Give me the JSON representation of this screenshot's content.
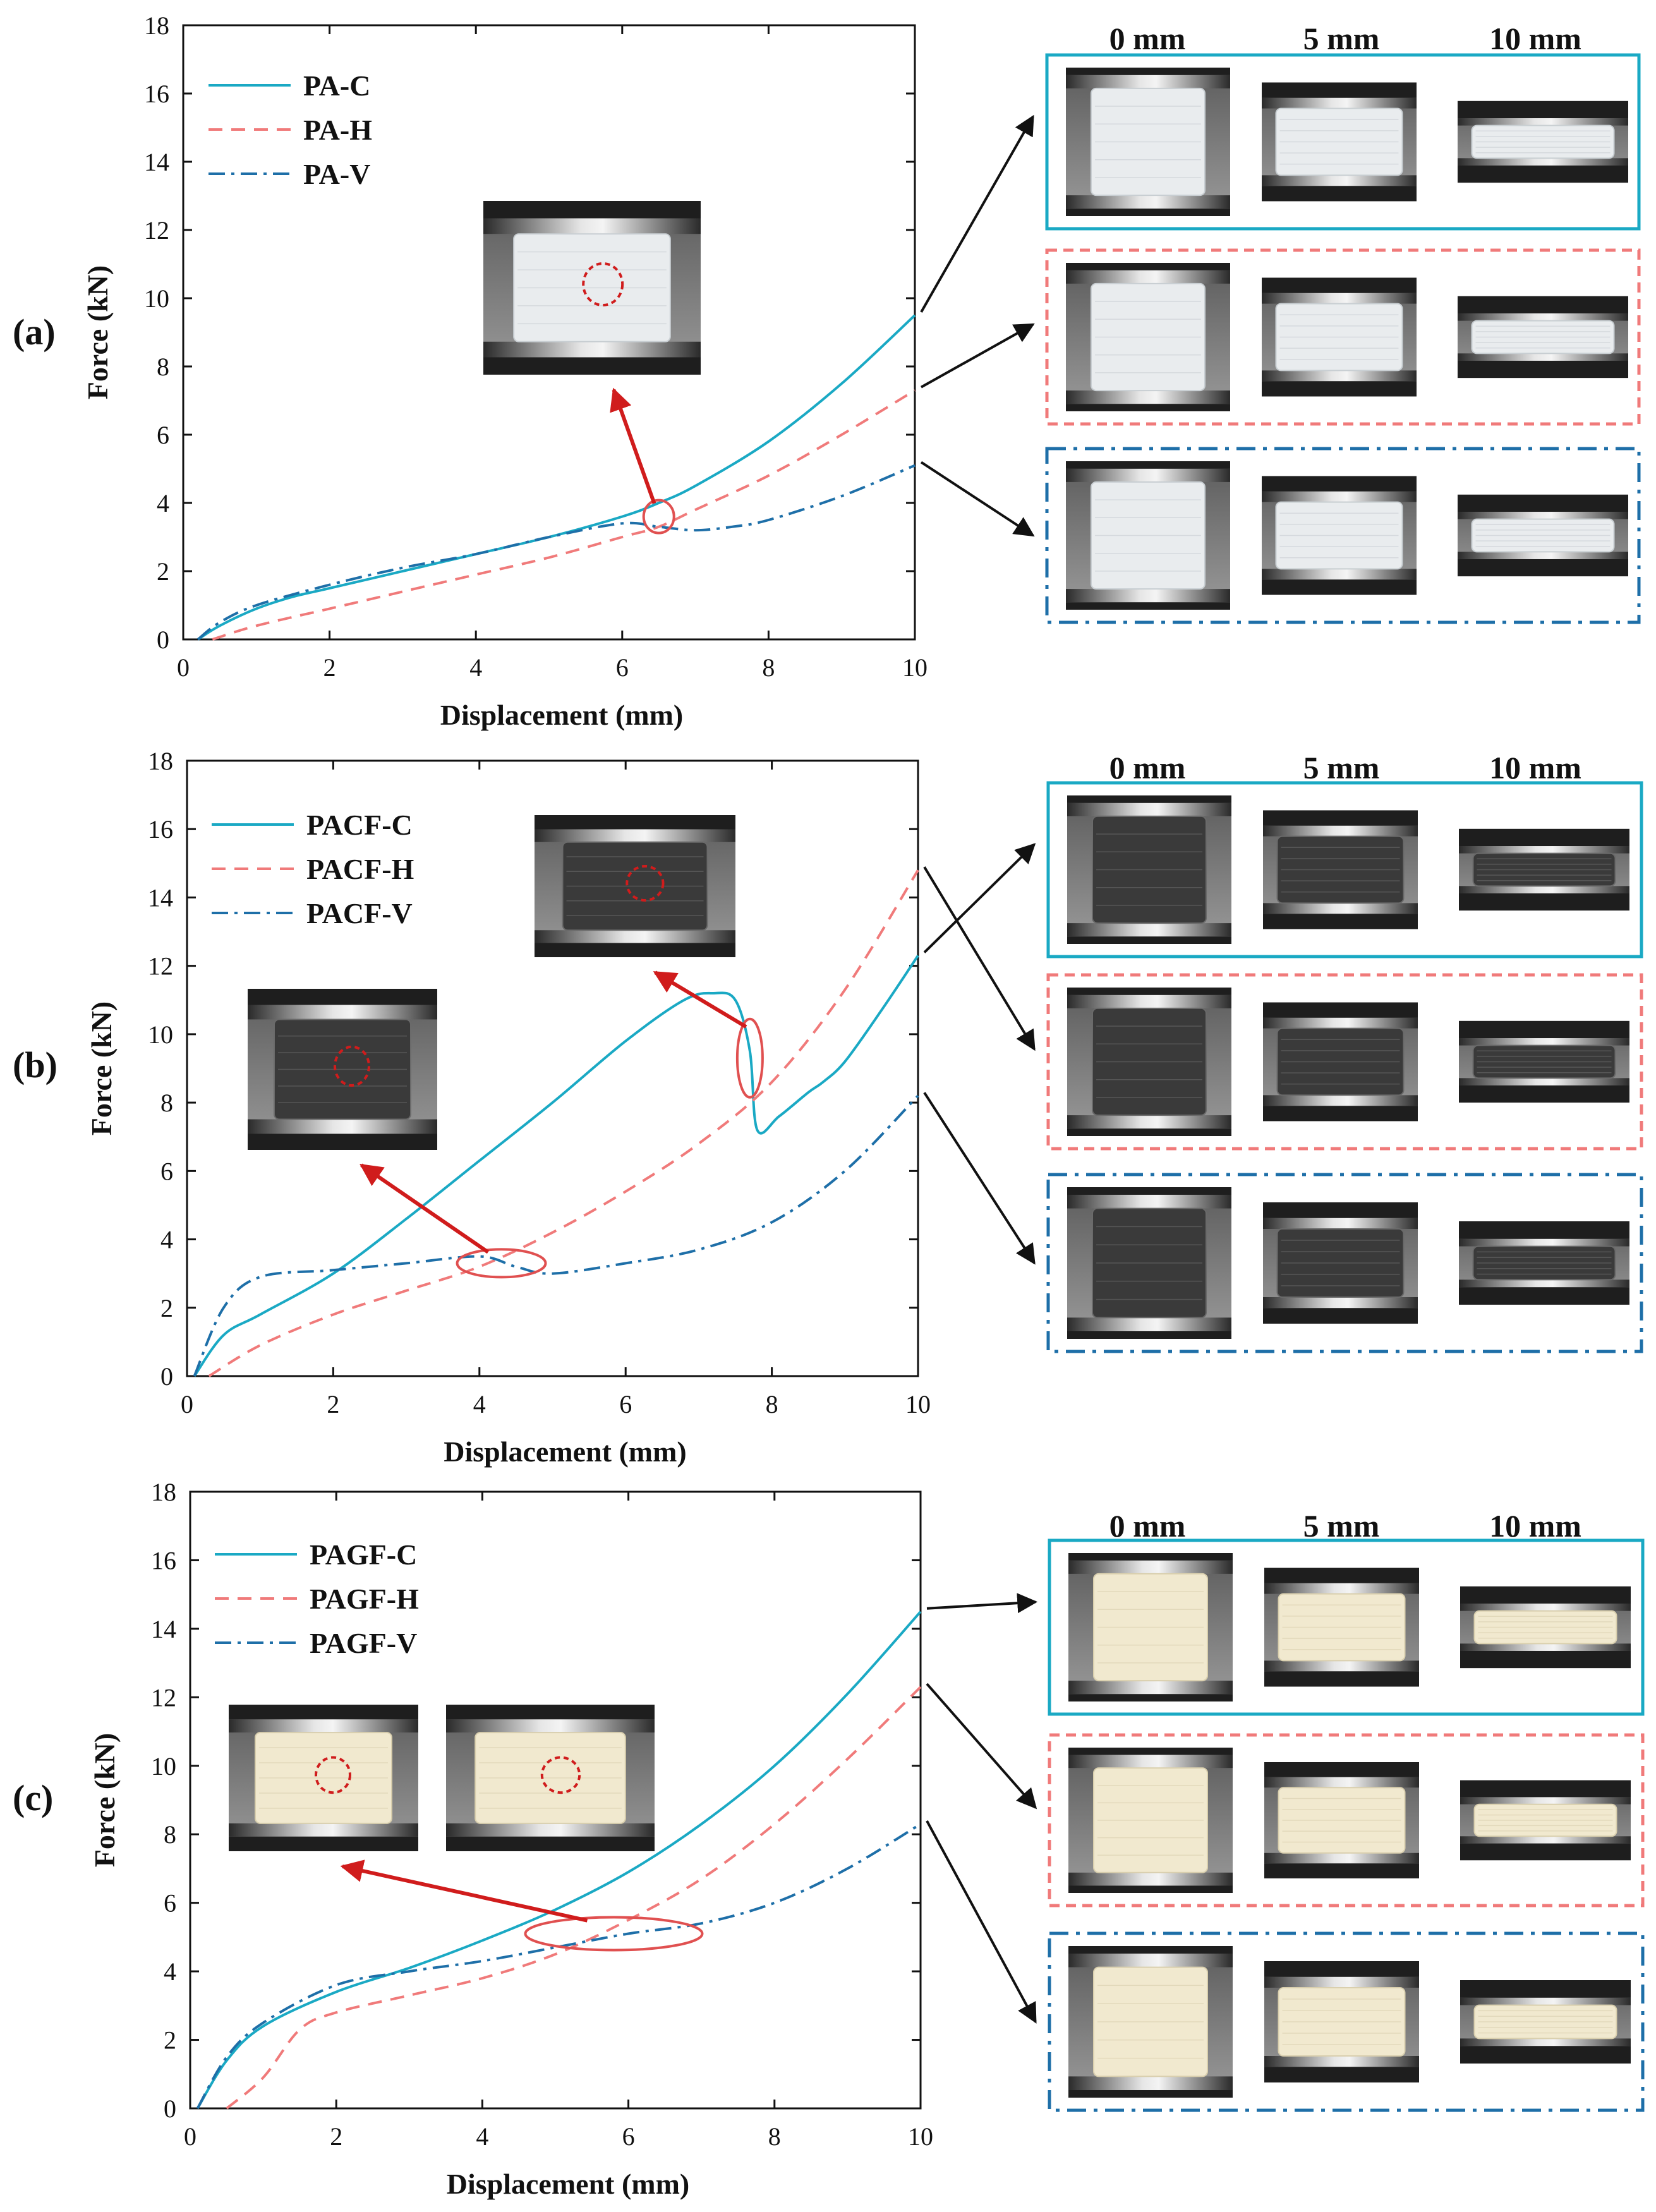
{
  "colors": {
    "c_series": "#1aa9c4",
    "h_series": "#f07a7a",
    "v_series": "#1e6fa8",
    "arrow_red": "#d01c1c",
    "ellipse_red": "#e05050",
    "axis": "#111111"
  },
  "column_headers": [
    "0 mm",
    "5 mm",
    "10 mm"
  ],
  "chart_data": [
    {
      "type": "line",
      "panel_label": "(a)",
      "xlabel": "Displacement (mm)",
      "ylabel": "Force (kN)",
      "xlim": [
        0,
        10
      ],
      "ylim": [
        0,
        18
      ],
      "xticks": [
        0,
        2,
        4,
        6,
        8,
        10
      ],
      "yticks": [
        0,
        2,
        4,
        6,
        8,
        10,
        12,
        14,
        16,
        18
      ],
      "legend_position": "top-left",
      "inset_specimens": [
        "PA-C",
        "PA-H",
        "PA-V"
      ],
      "series": [
        {
          "name": "PA-C",
          "style": "solid",
          "color_key": "c_series",
          "points": [
            [
              0.2,
              0
            ],
            [
              0.5,
              0.4
            ],
            [
              1,
              0.9
            ],
            [
              1.5,
              1.25
            ],
            [
              2,
              1.5
            ],
            [
              3,
              2
            ],
            [
              4,
              2.5
            ],
            [
              5,
              3
            ],
            [
              6,
              3.6
            ],
            [
              6.5,
              4
            ],
            [
              7,
              4.5
            ],
            [
              8,
              5.8
            ],
            [
              9,
              7.5
            ],
            [
              10,
              9.5
            ]
          ]
        },
        {
          "name": "PA-H",
          "style": "dashed",
          "color_key": "h_series",
          "points": [
            [
              0.4,
              0
            ],
            [
              1,
              0.4
            ],
            [
              2,
              0.9
            ],
            [
              3,
              1.4
            ],
            [
              4,
              1.9
            ],
            [
              5,
              2.4
            ],
            [
              6,
              3
            ],
            [
              6.5,
              3.3
            ],
            [
              7,
              3.8
            ],
            [
              8,
              4.8
            ],
            [
              9,
              6
            ],
            [
              10,
              7.3
            ]
          ]
        },
        {
          "name": "PA-V",
          "style": "dashdot",
          "color_key": "v_series",
          "points": [
            [
              0.2,
              0
            ],
            [
              0.5,
              0.5
            ],
            [
              1,
              1
            ],
            [
              2,
              1.6
            ],
            [
              3,
              2.1
            ],
            [
              4,
              2.5
            ],
            [
              5,
              3
            ],
            [
              6,
              3.4
            ],
            [
              6.5,
              3.3
            ],
            [
              7,
              3.2
            ],
            [
              7.5,
              3.3
            ],
            [
              8,
              3.5
            ],
            [
              9,
              4.2
            ],
            [
              10,
              5.1
            ]
          ]
        }
      ]
    },
    {
      "type": "line",
      "panel_label": "(b)",
      "xlabel": "Displacement (mm)",
      "ylabel": "Force (kN)",
      "xlim": [
        0,
        10
      ],
      "ylim": [
        0,
        18
      ],
      "xticks": [
        0,
        2,
        4,
        6,
        8,
        10
      ],
      "yticks": [
        0,
        2,
        4,
        6,
        8,
        10,
        12,
        14,
        16,
        18
      ],
      "legend_position": "top-left",
      "inset_specimens": [
        "PACF-C",
        "PACF-H",
        "PACF-V"
      ],
      "series": [
        {
          "name": "PACF-C",
          "style": "solid",
          "color_key": "c_series",
          "points": [
            [
              0.1,
              0
            ],
            [
              0.5,
              1.2
            ],
            [
              1,
              1.8
            ],
            [
              2,
              3
            ],
            [
              3,
              4.6
            ],
            [
              4,
              6.3
            ],
            [
              5,
              8
            ],
            [
              6,
              9.8
            ],
            [
              6.8,
              11
            ],
            [
              7.2,
              11.2
            ],
            [
              7.5,
              11
            ],
            [
              7.7,
              9.5
            ],
            [
              7.8,
              7.2
            ],
            [
              8.1,
              7.6
            ],
            [
              8.5,
              8.3
            ],
            [
              8.7,
              8.6
            ],
            [
              9,
              9.2
            ],
            [
              9.5,
              10.7
            ],
            [
              10,
              12.3
            ]
          ]
        },
        {
          "name": "PACF-H",
          "style": "dashed",
          "color_key": "h_series",
          "points": [
            [
              0.3,
              0
            ],
            [
              1,
              0.9
            ],
            [
              2,
              1.8
            ],
            [
              3,
              2.5
            ],
            [
              4,
              3.2
            ],
            [
              5,
              4.2
            ],
            [
              6,
              5.4
            ],
            [
              7,
              6.8
            ],
            [
              8,
              8.6
            ],
            [
              9,
              11.3
            ],
            [
              10,
              14.8
            ]
          ]
        },
        {
          "name": "PACF-V",
          "style": "dashdot",
          "color_key": "v_series",
          "points": [
            [
              0.1,
              0
            ],
            [
              0.5,
              2
            ],
            [
              1,
              2.9
            ],
            [
              2,
              3.1
            ],
            [
              3,
              3.3
            ],
            [
              4,
              3.5
            ],
            [
              4.5,
              3.2
            ],
            [
              5,
              3
            ],
            [
              6,
              3.3
            ],
            [
              7,
              3.7
            ],
            [
              8,
              4.5
            ],
            [
              9,
              6
            ],
            [
              10,
              8.2
            ]
          ]
        }
      ]
    },
    {
      "type": "line",
      "panel_label": "(c)",
      "xlabel": "Displacement (mm)",
      "ylabel": "Force (kN)",
      "xlim": [
        0,
        10
      ],
      "ylim": [
        0,
        18
      ],
      "xticks": [
        0,
        2,
        4,
        6,
        8,
        10
      ],
      "yticks": [
        0,
        2,
        4,
        6,
        8,
        10,
        12,
        14,
        16,
        18
      ],
      "legend_position": "top-left",
      "inset_specimens": [
        "PAGF-C",
        "PAGF-H",
        "PAGF-V"
      ],
      "series": [
        {
          "name": "PAGF-C",
          "style": "solid",
          "color_key": "c_series",
          "points": [
            [
              0.1,
              0
            ],
            [
              0.5,
              1.4
            ],
            [
              1,
              2.4
            ],
            [
              2,
              3.4
            ],
            [
              3,
              4.1
            ],
            [
              4,
              4.9
            ],
            [
              5,
              5.8
            ],
            [
              6,
              6.9
            ],
            [
              7,
              8.3
            ],
            [
              8,
              10
            ],
            [
              9,
              12.1
            ],
            [
              10,
              14.5
            ]
          ]
        },
        {
          "name": "PAGF-H",
          "style": "dashed",
          "color_key": "h_series",
          "points": [
            [
              0.5,
              0
            ],
            [
              1,
              0.9
            ],
            [
              1.5,
              2.3
            ],
            [
              2,
              2.8
            ],
            [
              3,
              3.3
            ],
            [
              4,
              3.8
            ],
            [
              5,
              4.5
            ],
            [
              6,
              5.5
            ],
            [
              7,
              6.7
            ],
            [
              8,
              8.3
            ],
            [
              9,
              10.2
            ],
            [
              10,
              12.3
            ]
          ]
        },
        {
          "name": "PAGF-V",
          "style": "dashdot",
          "color_key": "v_series",
          "points": [
            [
              0.1,
              0
            ],
            [
              0.5,
              1.5
            ],
            [
              1,
              2.5
            ],
            [
              2,
              3.6
            ],
            [
              3,
              4
            ],
            [
              4,
              4.3
            ],
            [
              5,
              4.7
            ],
            [
              6,
              5.1
            ],
            [
              7,
              5.4
            ],
            [
              8,
              6
            ],
            [
              9,
              7
            ],
            [
              10,
              8.3
            ]
          ]
        }
      ]
    }
  ]
}
